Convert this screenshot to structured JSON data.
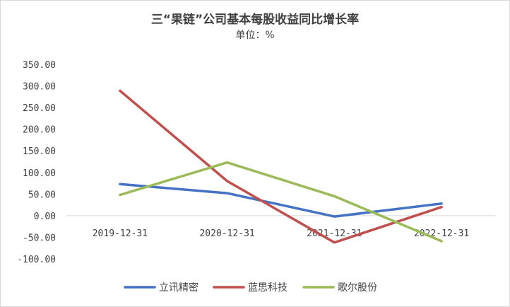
{
  "chart_data": {
    "type": "line",
    "title": "三“果链”公司基本每股收益同比增长率",
    "subtitle": "单位：%",
    "xlabel": "",
    "ylabel": "",
    "categories": [
      "2019-12-31",
      "2020-12-31",
      "2021-12-31",
      "2022-12-31"
    ],
    "yticks": [
      "-100.00",
      "-50.00",
      "0.00",
      "50.00",
      "100.00",
      "150.00",
      "200.00",
      "250.00",
      "300.00",
      "350.00"
    ],
    "ylim": [
      -100,
      350
    ],
    "grid": false,
    "legend_position": "bottom",
    "series": [
      {
        "name": "立讯精密",
        "color": "#4472C4",
        "values": [
          73,
          52,
          -2,
          28
        ]
      },
      {
        "name": "蓝思科技",
        "color": "#C0504D",
        "values": [
          289,
          80,
          -62,
          20
        ]
      },
      {
        "name": "歌尔股份",
        "color": "#9BBB59",
        "values": [
          48,
          123,
          45,
          -59
        ]
      }
    ]
  }
}
